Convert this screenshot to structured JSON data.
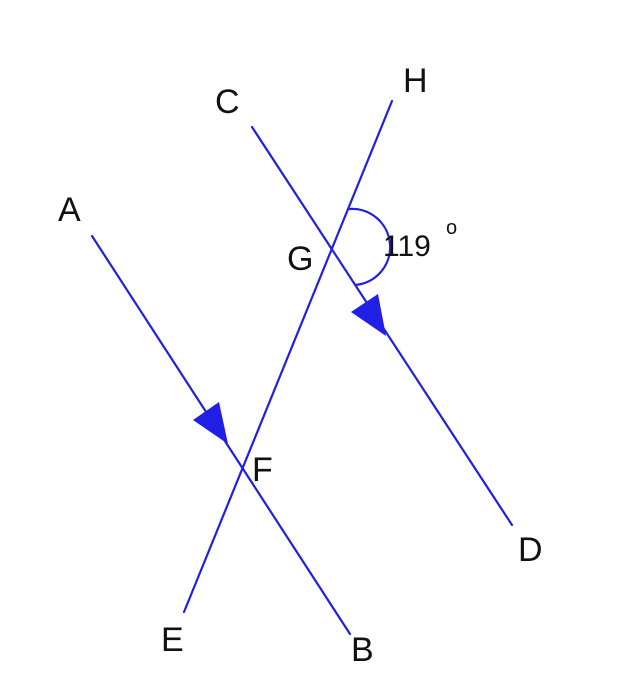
{
  "diagram": {
    "line_color": "#1f1fe6",
    "text_color": "#111111",
    "points": {
      "A": "A",
      "B": "B",
      "C": "C",
      "D": "D",
      "E": "E",
      "F": "F",
      "G": "G",
      "H": "H"
    },
    "angle": {
      "value": "119",
      "degree_mark": "o"
    }
  }
}
